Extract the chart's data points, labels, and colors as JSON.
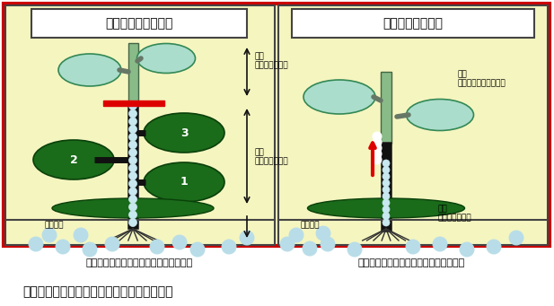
{
  "bg_color": "#fffff0",
  "outer_border_color": "#cc0000",
  "panel_border_color": "#444444",
  "title_box_color": "#ffffff",
  "caption": "図１　高接ぎ木の青枯病発病抑制メカニズム",
  "left_title": "高接ぎ木の発病抑制",
  "right_title": "慣行接ぎ木の発病",
  "left_bottom": "台木から穂木への青枯病菌の移行を抑制",
  "right_bottom": "台木から青枯病菌が穂木へ移行し、発病",
  "label_scion_left": "穂木\n（感受性品種）",
  "label_rootstock_left": "台木\n（抵抗性品種）",
  "label_bacteria_left": "青枯病菌",
  "label_scion_right": "穂木\n（感受性の栽培品種）",
  "label_rootstock_right": "台木\n（抵抗性品種）",
  "label_bacteria_right": "青枯病菌",
  "leaf_light": "#b0ddc8",
  "leaf_dark": "#1a6b1a",
  "leaf_dark2": "#2d8b2d",
  "stem_dark": "#111111",
  "stem_light": "#7fbf7f",
  "bacteria_fill": "#b8dde8",
  "bacteria_edge": "#6699aa",
  "red_bar": "#dd0000",
  "red_arrow": "#dd0000",
  "black_arrow": "#111111",
  "soil_color": "#c8b878",
  "bg_yellow": "#f5f5c0"
}
